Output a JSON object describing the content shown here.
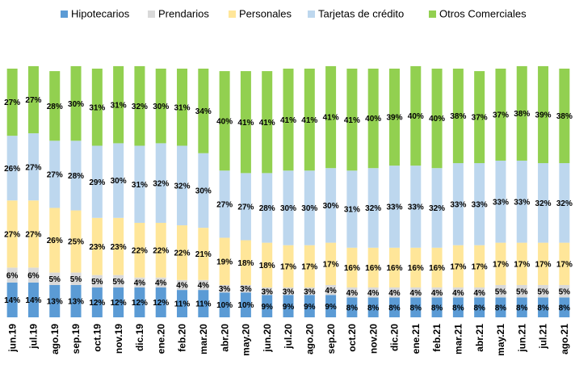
{
  "chart_data": {
    "type": "stacked_bar",
    "categories": [
      "jun.19",
      "jul.19",
      "ago.19",
      "sep.19",
      "oct.19",
      "nov.19",
      "dic.19",
      "ene.20",
      "feb.20",
      "mar.20",
      "abr.20",
      "may.20",
      "jun.20",
      "jul.20",
      "ago.20",
      "sep.20",
      "oct.20",
      "nov.20",
      "dic.20",
      "ene.21",
      "feb.21",
      "mar.21",
      "abr.21",
      "may.21",
      "jun.21",
      "jul.21",
      "ago.21"
    ],
    "ylim": [
      0,
      100
    ],
    "series": [
      {
        "name": "Hipotecarios",
        "color": "#5b9bd5",
        "values": [
          14,
          14,
          13,
          13,
          12,
          12,
          12,
          12,
          11,
          11,
          10,
          10,
          9,
          9,
          9,
          9,
          8,
          8,
          8,
          8,
          8,
          8,
          8,
          8,
          8,
          8,
          8
        ],
        "value_labels": [
          "14%",
          "14%",
          "13%",
          "13%",
          "12%",
          "12%",
          "12%",
          "12%",
          "11%",
          "11%",
          "10%",
          "10%",
          "9%",
          "9%",
          "9%",
          "9%",
          "8%",
          "8%",
          "8%",
          "8%",
          "8%",
          "8%",
          "8%",
          "8%",
          "8%",
          "8%",
          "8%"
        ]
      },
      {
        "name": "Prendarios",
        "color": "#d9d9d9",
        "values": [
          6,
          6,
          5,
          5,
          5,
          5,
          4,
          4,
          4,
          4,
          3,
          3,
          3,
          3,
          3,
          4,
          4,
          4,
          4,
          4,
          4,
          4,
          4,
          5,
          5,
          5,
          5
        ],
        "value_labels": [
          "6%",
          "6%",
          "5%",
          "5%",
          "5%",
          "5%",
          "4%",
          "4%",
          "4%",
          "4%",
          "3%",
          "3%",
          "3%",
          "3%",
          "3%",
          "4%",
          "4%",
          "4%",
          "4%",
          "4%",
          "4%",
          "4%",
          "4%",
          "5%",
          "5%",
          "5%",
          "5%"
        ]
      },
      {
        "name": "Personales",
        "color": "#ffe699",
        "values": [
          27,
          27,
          26,
          25,
          23,
          23,
          22,
          22,
          22,
          21,
          19,
          18,
          18,
          17,
          17,
          17,
          16,
          16,
          16,
          16,
          16,
          17,
          17,
          17,
          17,
          17,
          17
        ],
        "value_labels": [
          "27%",
          "27%",
          "26%",
          "25%",
          "23%",
          "23%",
          "22%",
          "22%",
          "22%",
          "21%",
          "19%",
          "18%",
          "18%",
          "17%",
          "17%",
          "17%",
          "16%",
          "16%",
          "16%",
          "16%",
          "16%",
          "17%",
          "17%",
          "17%",
          "17%",
          "17%",
          "17%"
        ]
      },
      {
        "name": "Tarjetas de crédito",
        "color": "#bdd7ee",
        "values": [
          26,
          27,
          27,
          28,
          29,
          30,
          31,
          32,
          32,
          30,
          27,
          27,
          28,
          30,
          30,
          30,
          31,
          32,
          33,
          33,
          32,
          33,
          33,
          33,
          33,
          32,
          32
        ],
        "value_labels": [
          "26%",
          "27%",
          "27%",
          "28%",
          "29%",
          "30%",
          "31%",
          "32%",
          "32%",
          "30%",
          "27%",
          "27%",
          "28%",
          "30%",
          "30%",
          "30%",
          "31%",
          "32%",
          "33%",
          "33%",
          "32%",
          "33%",
          "33%",
          "33%",
          "33%",
          "32%",
          "32%"
        ]
      },
      {
        "name": "Otros Comerciales",
        "color": "#92d050",
        "values": [
          27,
          27,
          28,
          30,
          31,
          31,
          32,
          30,
          31,
          34,
          40,
          41,
          41,
          41,
          41,
          41,
          41,
          40,
          39,
          40,
          40,
          38,
          37,
          37,
          38,
          39,
          38
        ],
        "value_labels": [
          "27%",
          "27%",
          "28%",
          "30%",
          "31%",
          "31%",
          "32%",
          "30%",
          "31%",
          "34%",
          "40%",
          "41%",
          "41%",
          "41%",
          "41%",
          "41%",
          "41%",
          "40%",
          "39%",
          "40%",
          "40%",
          "38%",
          "37%",
          "37%",
          "38%",
          "39%",
          "38%"
        ]
      }
    ]
  }
}
